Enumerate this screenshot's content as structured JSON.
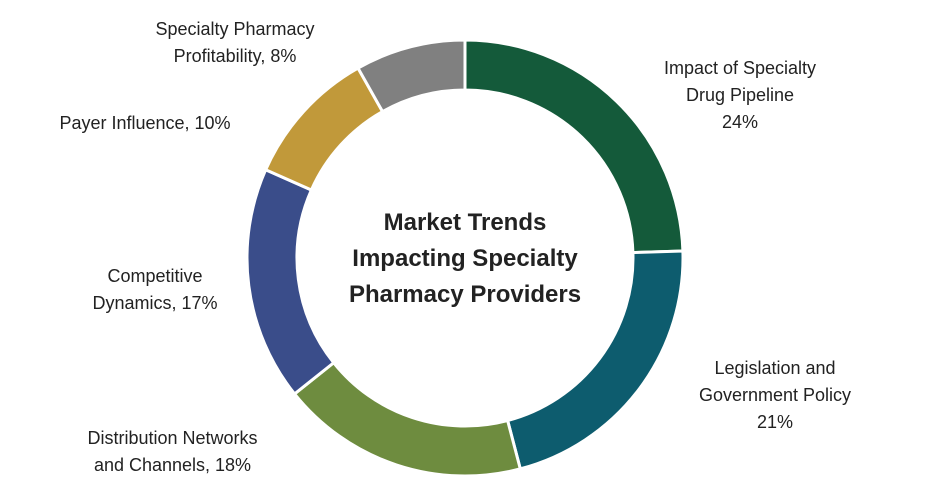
{
  "chart_data": {
    "type": "pie",
    "title": "Market Trends Impacting Specialty Pharmacy Providers",
    "title_lines": [
      "Market Trends",
      "Impacting Specialty",
      "Pharmacy Providers"
    ],
    "slices": [
      {
        "label": "Impact of Specialty Drug Pipeline",
        "value": 24,
        "color": "#145a3a",
        "label_lines": [
          "Impact of Specialty",
          "Drug Pipeline",
          "24%"
        ]
      },
      {
        "label": "Legislation and Government Policy",
        "value": 21,
        "color": "#0d5c6e",
        "label_lines": [
          "Legislation and",
          "Government Policy",
          "21%"
        ]
      },
      {
        "label": "Distribution Networks and Channels",
        "value": 18,
        "color": "#6e8c3f",
        "label_lines": [
          "Distribution Networks",
          "and Channels, 18%"
        ]
      },
      {
        "label": "Competitive Dynamics",
        "value": 17,
        "color": "#3a4d8a",
        "label_lines": [
          "Competitive",
          "Dynamics, 17%"
        ]
      },
      {
        "label": "Payer Influence",
        "value": 10,
        "color": "#c1993a",
        "label_lines": [
          "Payer Influence, 10%"
        ]
      },
      {
        "label": "Specialty Pharmacy Profitability",
        "value": 8,
        "color": "#808080",
        "label_lines": [
          "Specialty Pharmacy",
          "Profitability, 8%"
        ]
      }
    ],
    "donut": true,
    "legend": "none"
  }
}
